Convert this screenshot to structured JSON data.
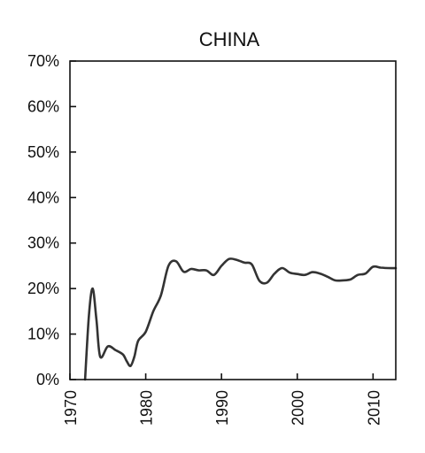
{
  "chart_data": {
    "type": "line",
    "title": "CHINA",
    "xlabel": "",
    "ylabel": "",
    "xlim": [
      1970,
      2013
    ],
    "ylim": [
      0,
      70
    ],
    "x_ticks": [
      1970,
      1980,
      1990,
      2000,
      2010
    ],
    "y_ticks": [
      0,
      10,
      20,
      30,
      40,
      50,
      60,
      70
    ],
    "y_tick_labels": [
      "0%",
      "10%",
      "20%",
      "30%",
      "40%",
      "50%",
      "60%",
      "70%"
    ],
    "grid": false,
    "legend": "none",
    "line_color": "#333333",
    "series": [
      {
        "x": [
          1972,
          1972.5,
          1973,
          1973.5,
          1974,
          1975,
          1976,
          1977,
          1977.5,
          1978,
          1978.5,
          1979,
          1980,
          1981,
          1982,
          1983,
          1984,
          1985,
          1986,
          1987,
          1988,
          1989,
          1990,
          1991,
          1992,
          1993,
          1994,
          1995,
          1996,
          1997,
          1998,
          1999,
          2000,
          2001,
          2002,
          2003,
          2004,
          2005,
          2006,
          2007,
          2008,
          2009,
          2010,
          2011,
          2012,
          2013
        ],
        "values": [
          0,
          14,
          20,
          13,
          5,
          7.3,
          6.5,
          5.5,
          4,
          3,
          5,
          8.5,
          10.5,
          15,
          18.5,
          25,
          26,
          23.7,
          24.3,
          24,
          24,
          23,
          25,
          26.5,
          26.3,
          25.7,
          25.3,
          21.7,
          21.3,
          23.3,
          24.5,
          23.5,
          23.2,
          23,
          23.6,
          23.3,
          22.6,
          21.8,
          21.8,
          22,
          23,
          23.3,
          24.8,
          24.6,
          24.5,
          24.5
        ]
      }
    ]
  }
}
